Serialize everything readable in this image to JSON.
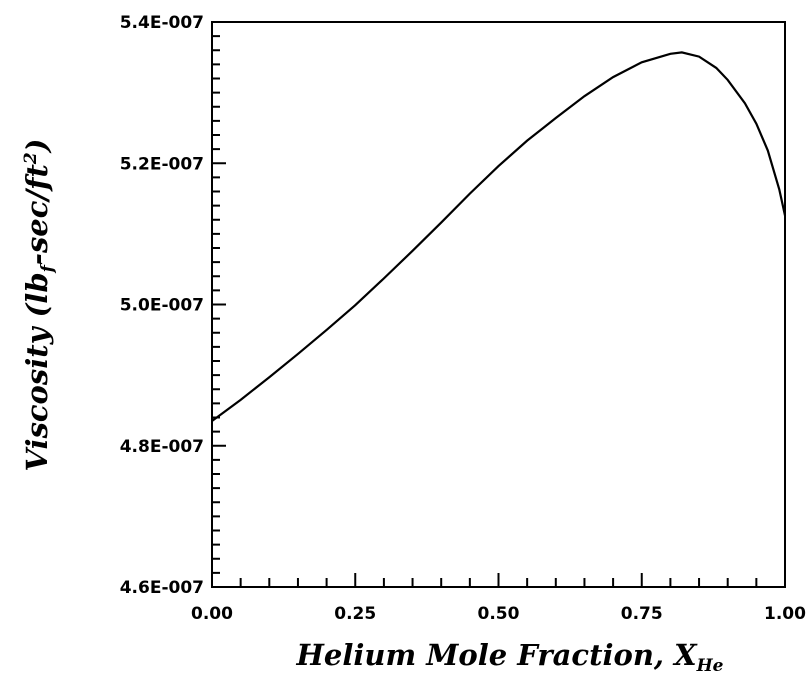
{
  "chart_data": {
    "type": "line",
    "title": "",
    "xlabel": "Helium Mole Fraction, X",
    "xlabel_sub": "He",
    "ylabel_prefix": "Viscosity (lb",
    "ylabel_sub": "f",
    "ylabel_mid": "-sec/ft",
    "ylabel_sup": "2",
    "ylabel_suffix": ")",
    "xlim": [
      0,
      1
    ],
    "ylim": [
      4.6e-07,
      5.4e-07
    ],
    "x_ticks": [
      0,
      0.25,
      0.5,
      0.75,
      1.0
    ],
    "x_tick_labels": [
      "0.00",
      "0.25",
      "0.50",
      "0.75",
      "1.00"
    ],
    "y_ticks": [
      4.6e-07,
      4.8e-07,
      5e-07,
      5.2e-07,
      5.4e-07
    ],
    "y_tick_labels": [
      "4.6E-007",
      "4.8E-007",
      "5.0E-007",
      "5.2E-007",
      "5.4E-007"
    ],
    "grid": false,
    "series": [
      {
        "x": [
          0,
          0.05,
          0.1,
          0.15,
          0.2,
          0.25,
          0.3,
          0.35,
          0.4,
          0.45,
          0.5,
          0.55,
          0.6,
          0.65,
          0.7,
          0.75,
          0.8,
          0.82,
          0.85,
          0.88,
          0.9,
          0.93,
          0.95,
          0.97,
          0.99,
          1.0
        ],
        "y": [
          4.835e-07,
          4.865e-07,
          4.897e-07,
          4.93e-07,
          4.964e-07,
          4.999e-07,
          5.037e-07,
          5.076e-07,
          5.116e-07,
          5.157e-07,
          5.196e-07,
          5.232e-07,
          5.264e-07,
          5.295e-07,
          5.322e-07,
          5.343e-07,
          5.355e-07,
          5.357e-07,
          5.351e-07,
          5.335e-07,
          5.318e-07,
          5.285e-07,
          5.256e-07,
          5.218e-07,
          5.163e-07,
          5.126e-07
        ]
      }
    ]
  }
}
